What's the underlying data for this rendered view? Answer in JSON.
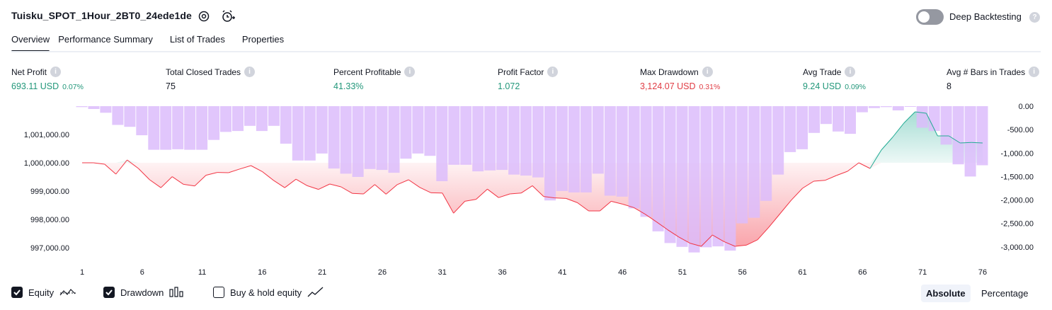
{
  "header": {
    "title": "Tuisku_SPOT_1Hour_2BT0_24ede1de",
    "deep_backtesting_label": "Deep Backtesting",
    "deep_backtesting_on": false
  },
  "tabs": [
    {
      "label": "Overview",
      "active": true
    },
    {
      "label": "Performance Summary",
      "active": false
    },
    {
      "label": "List of Trades",
      "active": false
    },
    {
      "label": "Properties",
      "active": false
    }
  ],
  "stats": {
    "net_profit": {
      "label": "Net Profit",
      "value": "693.11 USD",
      "pct": "0.07%"
    },
    "total_closed_trades": {
      "label": "Total Closed Trades",
      "value": "75"
    },
    "percent_profitable": {
      "label": "Percent Profitable",
      "value": "41.33%"
    },
    "profit_factor": {
      "label": "Profit Factor",
      "value": "1.072"
    },
    "max_drawdown": {
      "label": "Max Drawdown",
      "value": "3,124.07 USD",
      "pct": "0.31%"
    },
    "avg_trade": {
      "label": "Avg Trade",
      "value": "9.24 USD",
      "pct": "0.09%"
    },
    "avg_bars": {
      "label": "Avg # Bars in Trades",
      "value": "8"
    }
  },
  "colors": {
    "positive": "#22977a",
    "negative": "#e03c44",
    "drawdown_bar": "#dcbcfc",
    "drawdown_bar_highlight": "#c9a0f5",
    "equity_up_line": "#22ab94",
    "equity_down_line": "#f23645"
  },
  "chart_data": {
    "type": "line",
    "x_label_ticks": [
      "1",
      "6",
      "11",
      "16",
      "21",
      "26",
      "31",
      "36",
      "41",
      "46",
      "51",
      "56",
      "61",
      "66",
      "71",
      "76"
    ],
    "x_range": [
      1,
      76
    ],
    "equity": {
      "name": "Equity",
      "baseline": 1000000,
      "ylim": [
        996700,
        1002000
      ],
      "y_tick_labels": [
        "1,001,000.00",
        "1,000,000.00",
        "999,000.00",
        "998,000.00",
        "997,000.00"
      ],
      "y_tick_values": [
        1001000,
        1000000,
        999000,
        998000,
        997000
      ],
      "values": [
        1000000,
        1000000,
        999950,
        999600,
        1000100,
        999800,
        999400,
        999120,
        999510,
        999240,
        999180,
        999560,
        999660,
        999650,
        999780,
        999900,
        999690,
        999380,
        999120,
        999420,
        999190,
        999060,
        999250,
        999150,
        998920,
        998900,
        999230,
        998890,
        999230,
        999400,
        999130,
        998940,
        998930,
        998220,
        998640,
        998710,
        999070,
        998770,
        998900,
        998930,
        999190,
        998810,
        998760,
        998740,
        998590,
        998300,
        998300,
        998640,
        998540,
        998420,
        998190,
        997920,
        997640,
        997380,
        997160,
        997050,
        997450,
        997220,
        997050,
        997090,
        997280,
        997720,
        998200,
        998680,
        999100,
        999350,
        999380,
        999550,
        999700,
        1000000,
        999800,
        1000450,
        1000900,
        1001400,
        1001800,
        1001750,
        1000950,
        1000950,
        1000700,
        1000720,
        1000700
      ],
      "values_note": ""
    },
    "drawdown": {
      "name": "Drawdown",
      "ylim": [
        -3200,
        0
      ],
      "y_tick_labels": [
        "0.00",
        "-500.00",
        "-1,000.00",
        "-1,500.00",
        "-2,000.00",
        "-2,500.00",
        "-3,000.00"
      ],
      "y_tick_values": [
        0,
        -500,
        -1000,
        -1500,
        -2000,
        -2500,
        -3000
      ],
      "values": [
        -20,
        -60,
        -140,
        -400,
        -440,
        -620,
        -930,
        -930,
        -920,
        -930,
        -930,
        -720,
        -550,
        -530,
        -420,
        -530,
        -420,
        -800,
        -1160,
        -1160,
        -1010,
        -1330,
        -1440,
        -1510,
        -1340,
        -1360,
        -1420,
        -1120,
        -1010,
        -1060,
        -1600,
        -1250,
        -1250,
        -1390,
        -1370,
        -1360,
        -1460,
        -1480,
        -1520,
        -2010,
        -1810,
        -1840,
        -1840,
        -1440,
        -1910,
        -1930,
        -2180,
        -2360,
        -2670,
        -2920,
        -3000,
        -3120,
        -3010,
        -2990,
        -3080,
        -2500,
        -2380,
        -2020,
        -1460,
        -980,
        -920,
        -570,
        -380,
        -540,
        -590,
        -130,
        -40,
        -20,
        -90,
        0,
        -460,
        -530,
        -820,
        -1240,
        -1500,
        -1260
      ]
    },
    "legend": "bottom-left",
    "grid": false
  },
  "footer": {
    "equity_label": "Equity",
    "equity_checked": true,
    "drawdown_label": "Drawdown",
    "drawdown_checked": true,
    "buyhold_label": "Buy & hold equity",
    "buyhold_checked": false,
    "absolute_label": "Absolute",
    "percentage_label": "Percentage",
    "mode": "Absolute"
  }
}
